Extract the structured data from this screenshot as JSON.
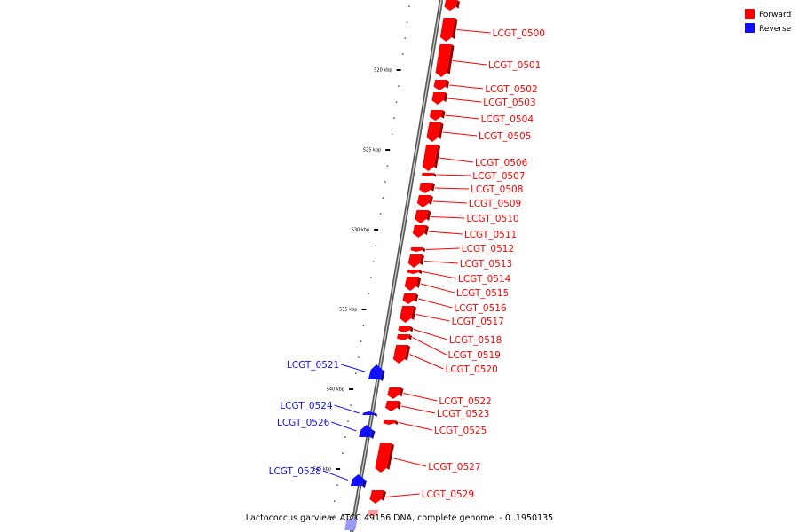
{
  "legend": [
    {
      "label": "Forward",
      "color": "#ff0000"
    },
    {
      "label": "Reverse",
      "color": "#1010ff"
    }
  ],
  "caption": "Lactococcus garvieae ATCC 49156 DNA, complete genome. - 0..1950135",
  "ticks": [
    "520 kbp",
    "525 kbp",
    "530 kbp",
    "535 kbp",
    "540 kbp",
    "545 kbp"
  ],
  "genes": [
    {
      "label": "LCGT_0500",
      "strand": "forward"
    },
    {
      "label": "LCGT_0501",
      "strand": "forward"
    },
    {
      "label": "LCGT_0502",
      "strand": "forward"
    },
    {
      "label": "LCGT_0503",
      "strand": "forward"
    },
    {
      "label": "LCGT_0504",
      "strand": "forward"
    },
    {
      "label": "LCGT_0505",
      "strand": "forward"
    },
    {
      "label": "LCGT_0506",
      "strand": "forward"
    },
    {
      "label": "LCGT_0507",
      "strand": "forward"
    },
    {
      "label": "LCGT_0508",
      "strand": "forward"
    },
    {
      "label": "LCGT_0509",
      "strand": "forward"
    },
    {
      "label": "LCGT_0510",
      "strand": "forward"
    },
    {
      "label": "LCGT_0511",
      "strand": "forward"
    },
    {
      "label": "LCGT_0512",
      "strand": "forward"
    },
    {
      "label": "LCGT_0513",
      "strand": "forward"
    },
    {
      "label": "LCGT_0514",
      "strand": "forward"
    },
    {
      "label": "LCGT_0515",
      "strand": "forward"
    },
    {
      "label": "LCGT_0516",
      "strand": "forward"
    },
    {
      "label": "LCGT_0517",
      "strand": "forward"
    },
    {
      "label": "LCGT_0518",
      "strand": "forward"
    },
    {
      "label": "LCGT_0519",
      "strand": "forward"
    },
    {
      "label": "LCGT_0520",
      "strand": "forward"
    },
    {
      "label": "LCGT_0521",
      "strand": "reverse"
    },
    {
      "label": "LCGT_0522",
      "strand": "forward"
    },
    {
      "label": "LCGT_0523",
      "strand": "forward"
    },
    {
      "label": "LCGT_0524",
      "strand": "reverse"
    },
    {
      "label": "LCGT_0525",
      "strand": "forward"
    },
    {
      "label": "LCGT_0526",
      "strand": "reverse"
    },
    {
      "label": "LCGT_0527",
      "strand": "forward"
    },
    {
      "label": "LCGT_0528",
      "strand": "reverse"
    },
    {
      "label": "LCGT_0529",
      "strand": "forward"
    }
  ]
}
